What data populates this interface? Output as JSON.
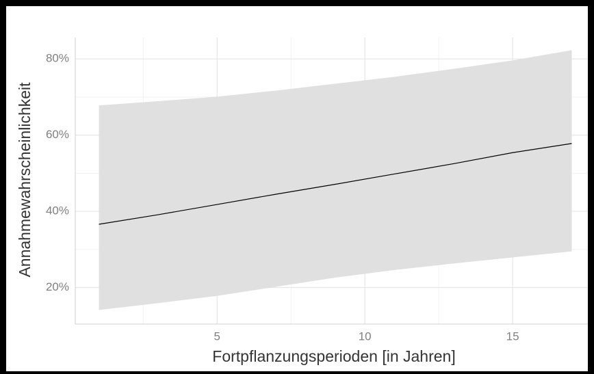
{
  "chart_data": {
    "type": "line",
    "x_label": "Fortpflanzungsperioden [in Jahren]",
    "y_label": "Annahmewahrscheinlichkeit",
    "x": [
      1,
      3,
      5,
      7,
      9,
      11,
      13,
      15,
      17
    ],
    "values": [
      36.6,
      39.1,
      41.8,
      44.5,
      47.1,
      49.8,
      52.5,
      55.4,
      57.8
    ],
    "upper": [
      67.8,
      68.9,
      70.1,
      71.7,
      73.5,
      75.3,
      77.4,
      79.6,
      82.3
    ],
    "lower": [
      14.1,
      15.9,
      17.8,
      20.2,
      22.6,
      24.6,
      26.3,
      27.9,
      29.5
    ],
    "color": "#000000",
    "band_color": "#e0e0e0",
    "xlim": [
      0.2,
      17.8
    ],
    "xticks": [
      5,
      10,
      15
    ],
    "minor_xticks": [
      2.5,
      7.5,
      12.5,
      17.5
    ],
    "ylim": [
      10.4,
      85.6
    ],
    "yticks": [
      {
        "value": 20,
        "label": "20%"
      },
      {
        "value": 40,
        "label": "40%"
      },
      {
        "value": 60,
        "label": "60%"
      },
      {
        "value": 80,
        "label": "80%"
      }
    ],
    "minor_yticks": [
      30,
      50,
      70
    ],
    "grid": true
  }
}
